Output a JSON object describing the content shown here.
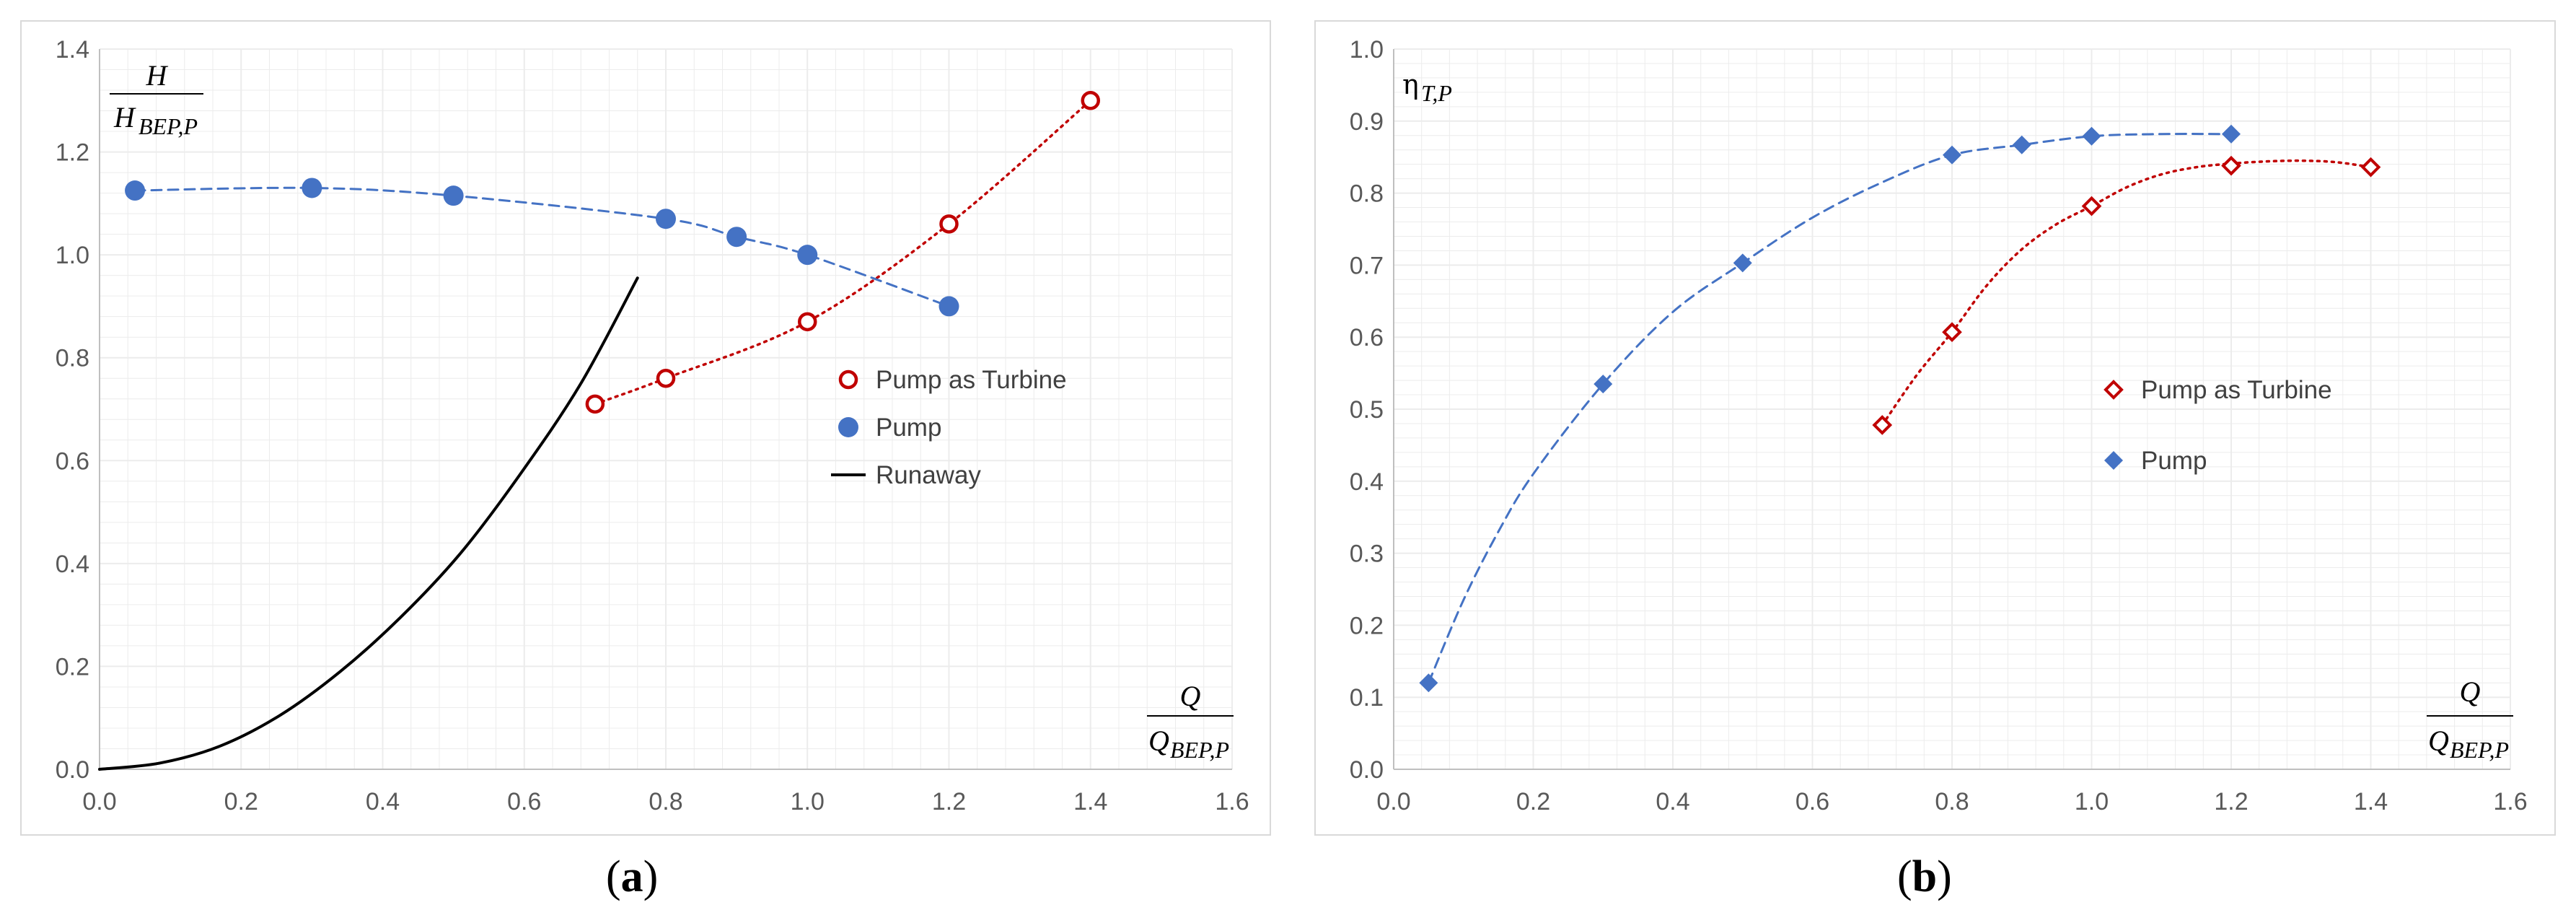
{
  "colors": {
    "red": "#c00000",
    "blue": "#4472c4",
    "black": "#000000",
    "grid": "#ececec",
    "tick": "#595959"
  },
  "chart_data": [
    {
      "id": "a",
      "type": "scatter",
      "caption_label": "a",
      "y_label_num": "H",
      "y_label_den": "H",
      "y_label_den_sub": "BEP,P",
      "x_label_num": "Q",
      "x_label_den": "Q",
      "x_label_den_sub": "BEP,P",
      "xlim": [
        0,
        1.6
      ],
      "ylim": [
        0,
        1.4
      ],
      "xticks": [
        "0.0",
        "0.2",
        "0.4",
        "0.6",
        "0.8",
        "1.0",
        "1.2",
        "1.4",
        "1.6"
      ],
      "yticks": [
        "0.0",
        "0.2",
        "0.4",
        "0.6",
        "0.8",
        "1.0",
        "1.2",
        "1.4"
      ],
      "grid": true,
      "legend_position": "center-right",
      "series": [
        {
          "name": "Pump as Turbine",
          "marker": "open-circle",
          "line": "dotted",
          "color": "#c00000",
          "x": [
            0.7,
            0.8,
            1.0,
            1.2,
            1.4
          ],
          "y": [
            0.71,
            0.76,
            0.87,
            1.06,
            1.3
          ]
        },
        {
          "name": "Pump",
          "marker": "filled-circle",
          "line": "dashed",
          "color": "#4472c4",
          "x": [
            0.05,
            0.3,
            0.5,
            0.8,
            0.9,
            1.0,
            1.2
          ],
          "y": [
            1.125,
            1.13,
            1.115,
            1.07,
            1.035,
            1.0,
            0.9
          ]
        },
        {
          "name": "Runaway",
          "marker": "none",
          "line": "solid",
          "color": "#000000",
          "x": [
            0.0,
            0.085,
            0.17,
            0.255,
            0.34,
            0.425,
            0.51,
            0.595,
            0.68,
            0.76
          ],
          "y": [
            0.0,
            0.012,
            0.045,
            0.105,
            0.19,
            0.295,
            0.42,
            0.575,
            0.75,
            0.955
          ]
        }
      ]
    },
    {
      "id": "b",
      "type": "scatter",
      "caption_label": "b",
      "y_label_eta": "η",
      "y_label_eta_sub": "T,P",
      "x_label_num": "Q",
      "x_label_den": "Q",
      "x_label_den_sub": "BEP,P",
      "xlim": [
        0,
        1.6
      ],
      "ylim": [
        0,
        1.0
      ],
      "xticks": [
        "0.0",
        "0.2",
        "0.4",
        "0.6",
        "0.8",
        "1.0",
        "1.2",
        "1.4",
        "1.6"
      ],
      "yticks": [
        "0.0",
        "0.1",
        "0.2",
        "0.3",
        "0.4",
        "0.5",
        "0.6",
        "0.7",
        "0.8",
        "0.9",
        "1.0"
      ],
      "grid": true,
      "legend_position": "center-right",
      "series": [
        {
          "name": "Pump as Turbine",
          "marker": "open-diamond",
          "line": "dotted",
          "color": "#c00000",
          "x": [
            0.7,
            0.8,
            1.0,
            1.2,
            1.4
          ],
          "y": [
            0.478,
            0.607,
            0.782,
            0.838,
            0.836
          ],
          "trend_x": [
            0.7,
            0.75,
            0.8,
            0.85,
            0.9,
            0.95,
            1.0,
            1.05,
            1.1,
            1.15,
            1.2,
            1.25,
            1.3,
            1.35,
            1.4
          ],
          "trend_y": [
            0.478,
            0.548,
            0.607,
            0.672,
            0.722,
            0.757,
            0.782,
            0.808,
            0.826,
            0.836,
            0.841,
            0.844,
            0.845,
            0.843,
            0.836
          ]
        },
        {
          "name": "Pump",
          "marker": "filled-diamond",
          "line": "dashed",
          "color": "#4472c4",
          "x": [
            0.05,
            0.3,
            0.5,
            0.8,
            0.9,
            1.0,
            1.2
          ],
          "y": [
            0.12,
            0.535,
            0.703,
            0.853,
            0.867,
            0.879,
            0.882
          ],
          "trend_x": [
            0.05,
            0.1,
            0.15,
            0.2,
            0.3,
            0.4,
            0.5,
            0.6,
            0.7,
            0.8,
            0.9,
            1.0,
            1.1,
            1.2
          ],
          "trend_y": [
            0.12,
            0.235,
            0.33,
            0.41,
            0.535,
            0.635,
            0.703,
            0.766,
            0.815,
            0.853,
            0.867,
            0.879,
            0.882,
            0.882
          ]
        }
      ]
    }
  ]
}
